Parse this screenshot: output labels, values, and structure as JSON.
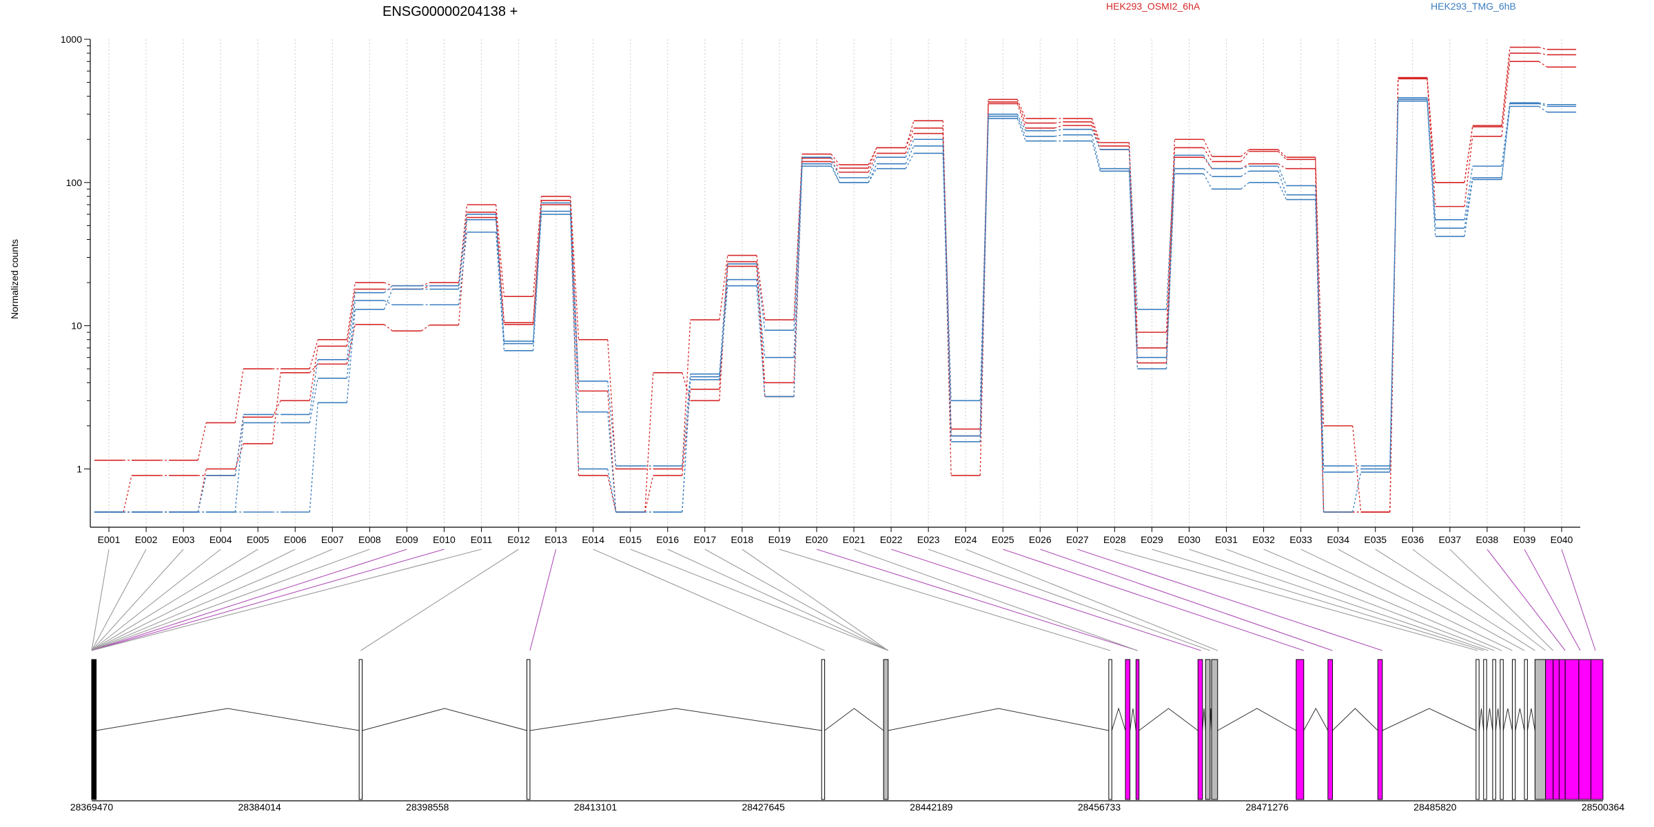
{
  "title": "ENSG00000204138 +",
  "legend": [
    {
      "label": "HEK293_OSMI2_6hA",
      "color": "#d62728"
    },
    {
      "label": "HEK293_TMG_6hB",
      "color": "#3b7ebf"
    }
  ],
  "chart_data": {
    "type": "line",
    "title": "ENSG00000204138 +",
    "ylabel": "Normalized counts",
    "xlabel": "",
    "yscale": "log",
    "ylim": [
      0.5,
      1000
    ],
    "yticks": [
      1,
      10,
      100,
      1000
    ],
    "ytick_labels": [
      "1",
      "10",
      "100",
      "1000"
    ],
    "grid": "vertical dotted lines at each exon",
    "legend_placement": "top",
    "categories": [
      "E001",
      "E002",
      "E003",
      "E004",
      "E005",
      "E006",
      "E007",
      "E008",
      "E009",
      "E010",
      "E011",
      "E012",
      "E013",
      "E014",
      "E015",
      "E016",
      "E017",
      "E018",
      "E019",
      "E020",
      "E021",
      "E022",
      "E023",
      "E024",
      "E025",
      "E026",
      "E027",
      "E028",
      "E029",
      "E030",
      "E031",
      "E032",
      "E033",
      "E034",
      "E035",
      "E036",
      "E037",
      "E038",
      "E039",
      "E040"
    ],
    "series": [
      {
        "name": "HEK293_OSMI2_6hA",
        "color": "#d62728",
        "values": [
          1.15,
          1.15,
          1.15,
          2.1,
          5,
          5,
          8,
          20,
          19,
          20,
          70,
          16,
          80,
          8,
          1,
          1,
          11,
          31,
          11,
          158,
          133,
          175,
          270,
          1.9,
          380,
          280,
          280,
          190,
          9,
          200,
          152,
          170,
          150,
          2,
          0.5,
          540,
          100,
          250,
          880,
          850
        ]
      },
      {
        "name": "HEK293_OSMI2_6hA",
        "color": "#d62728",
        "values": [
          0.5,
          0.9,
          0.9,
          0.9,
          2.3,
          3,
          7.2,
          18,
          18,
          19,
          62,
          10.5,
          75,
          3.5,
          0.5,
          0.9,
          3.6,
          28,
          4,
          148,
          126,
          175,
          240,
          1.7,
          365,
          260,
          265,
          180,
          7,
          175,
          140,
          165,
          145,
          0.5,
          0.5,
          535,
          100,
          245,
          800,
          780
        ]
      },
      {
        "name": "HEK293_OSMI2_6hA",
        "color": "#d62728",
        "values": [
          0.5,
          0.5,
          0.5,
          1.0,
          1.5,
          4.7,
          5.4,
          10.2,
          9.2,
          10.1,
          57,
          10.2,
          70,
          0.9,
          0.5,
          4.7,
          3.0,
          26,
          3.2,
          140,
          118,
          160,
          220,
          0.9,
          355,
          240,
          250,
          170,
          5.5,
          150,
          125,
          135,
          125,
          0.5,
          0.5,
          530,
          68,
          210,
          700,
          640
        ]
      },
      {
        "name": "HEK293_TMG_6hB",
        "color": "#3b7ebf",
        "values": [
          0.5,
          0.5,
          0.5,
          0.9,
          2.4,
          2.4,
          5.8,
          17,
          19,
          19,
          60,
          7.5,
          72,
          4.1,
          1.05,
          1.05,
          4.6,
          27,
          9.3,
          150,
          108,
          150,
          200,
          3.0,
          300,
          230,
          235,
          170,
          13,
          155,
          125,
          130,
          95,
          1.05,
          1.05,
          390,
          55,
          130,
          360,
          350
        ]
      },
      {
        "name": "HEK293_TMG_6hB",
        "color": "#3b7ebf",
        "values": [
          0.5,
          0.5,
          0.5,
          0.5,
          2.1,
          2.1,
          4.3,
          15,
          14,
          14,
          45,
          6.7,
          63,
          2.5,
          0.5,
          0.5,
          4.4,
          21,
          6,
          135,
          100,
          135,
          180,
          1.7,
          290,
          210,
          215,
          125,
          6,
          125,
          110,
          120,
          82,
          0.95,
          1.0,
          380,
          48,
          108,
          355,
          340
        ]
      },
      {
        "name": "HEK293_TMG_6hB",
        "color": "#3b7ebf",
        "values": [
          0.5,
          0.5,
          0.5,
          0.5,
          0.5,
          0.5,
          2.9,
          13,
          18,
          18,
          55,
          7.8,
          60,
          1.0,
          0.5,
          0.5,
          4.2,
          19,
          3.2,
          130,
          100,
          125,
          160,
          1.55,
          280,
          195,
          195,
          120,
          5.0,
          115,
          90,
          100,
          76,
          0.5,
          0.95,
          370,
          42,
          105,
          340,
          310
        ]
      }
    ],
    "exon_links": [
      {
        "exon": "E001",
        "x": 0.0,
        "highlight": false
      },
      {
        "exon": "E002",
        "x": 0.0,
        "highlight": false
      },
      {
        "exon": "E003",
        "x": 0.0,
        "highlight": false
      },
      {
        "exon": "E004",
        "x": 0.0,
        "highlight": false
      },
      {
        "exon": "E005",
        "x": 0.0,
        "highlight": false
      },
      {
        "exon": "E006",
        "x": 0.0,
        "highlight": false
      },
      {
        "exon": "E007",
        "x": 0.0,
        "highlight": false
      },
      {
        "exon": "E008",
        "x": 0.0,
        "highlight": false
      },
      {
        "exon": "E009",
        "x": 0.0,
        "highlight": true
      },
      {
        "exon": "E010",
        "x": 0.0,
        "highlight": true
      },
      {
        "exon": "E011",
        "x": 0.0,
        "highlight": false
      },
      {
        "exon": "E012",
        "x": 0.178,
        "highlight": false
      },
      {
        "exon": "E013",
        "x": 0.29,
        "highlight": true
      },
      {
        "exon": "E014",
        "x": 0.485,
        "highlight": false
      },
      {
        "exon": "E015",
        "x": 0.527,
        "highlight": false
      },
      {
        "exon": "E016",
        "x": 0.527,
        "highlight": false
      },
      {
        "exon": "E017",
        "x": 0.527,
        "highlight": false
      },
      {
        "exon": "E018",
        "x": 0.527,
        "highlight": false
      },
      {
        "exon": "E019",
        "x": 0.674,
        "highlight": false
      },
      {
        "exon": "E020",
        "x": 0.692,
        "highlight": true
      },
      {
        "exon": "E021",
        "x": 0.692,
        "highlight": false
      },
      {
        "exon": "E022",
        "x": 0.734,
        "highlight": true
      },
      {
        "exon": "E023",
        "x": 0.74,
        "highlight": false
      },
      {
        "exon": "E024",
        "x": 0.745,
        "highlight": false
      },
      {
        "exon": "E025",
        "x": 0.802,
        "highlight": true
      },
      {
        "exon": "E026",
        "x": 0.821,
        "highlight": true
      },
      {
        "exon": "E027",
        "x": 0.854,
        "highlight": true
      },
      {
        "exon": "E028",
        "x": 0.917,
        "highlight": false
      },
      {
        "exon": "E029",
        "x": 0.921,
        "highlight": false
      },
      {
        "exon": "E030",
        "x": 0.924,
        "highlight": false
      },
      {
        "exon": "E031",
        "x": 0.928,
        "highlight": false
      },
      {
        "exon": "E032",
        "x": 0.933,
        "highlight": false
      },
      {
        "exon": "E033",
        "x": 0.94,
        "highlight": false
      },
      {
        "exon": "E034",
        "x": 0.948,
        "highlight": false
      },
      {
        "exon": "E035",
        "x": 0.955,
        "highlight": false
      },
      {
        "exon": "E036",
        "x": 0.962,
        "highlight": false
      },
      {
        "exon": "E037",
        "x": 0.967,
        "highlight": false
      },
      {
        "exon": "E038",
        "x": 0.975,
        "highlight": true
      },
      {
        "exon": "E039",
        "x": 0.985,
        "highlight": true
      },
      {
        "exon": "E040",
        "x": 0.995,
        "highlight": true
      }
    ],
    "gene_model": {
      "exons": [
        {
          "start": 0.0,
          "end": 0.003,
          "fill": "#000000"
        },
        {
          "start": 0.177,
          "end": 0.179,
          "fill": "#ffffff"
        },
        {
          "start": 0.288,
          "end": 0.29,
          "fill": "#ffffff"
        },
        {
          "start": 0.483,
          "end": 0.485,
          "fill": "#ffffff"
        },
        {
          "start": 0.524,
          "end": 0.527,
          "fill": "#bbbbbb"
        },
        {
          "start": 0.673,
          "end": 0.675,
          "fill": "#ffffff"
        },
        {
          "start": 0.684,
          "end": 0.687,
          "fill": "#ff00ff"
        },
        {
          "start": 0.691,
          "end": 0.693,
          "fill": "#ff00ff"
        },
        {
          "start": 0.732,
          "end": 0.735,
          "fill": "#ff00ff"
        },
        {
          "start": 0.737,
          "end": 0.74,
          "fill": "#bbbbbb"
        },
        {
          "start": 0.741,
          "end": 0.745,
          "fill": "#bbbbbb"
        },
        {
          "start": 0.797,
          "end": 0.802,
          "fill": "#ff00ff"
        },
        {
          "start": 0.818,
          "end": 0.821,
          "fill": "#ff00ff"
        },
        {
          "start": 0.851,
          "end": 0.854,
          "fill": "#ff00ff"
        },
        {
          "start": 0.916,
          "end": 0.918,
          "fill": "#ffffff"
        },
        {
          "start": 0.921,
          "end": 0.923,
          "fill": "#ffffff"
        },
        {
          "start": 0.927,
          "end": 0.929,
          "fill": "#ffffff"
        },
        {
          "start": 0.932,
          "end": 0.934,
          "fill": "#ffffff"
        },
        {
          "start": 0.94,
          "end": 0.942,
          "fill": "#ffffff"
        },
        {
          "start": 0.948,
          "end": 0.95,
          "fill": "#ffffff"
        },
        {
          "start": 0.955,
          "end": 0.962,
          "fill": "#bbbbbb"
        },
        {
          "start": 0.962,
          "end": 0.967,
          "fill": "#ff00ff"
        },
        {
          "start": 0.967,
          "end": 0.971,
          "fill": "#ff00ff"
        },
        {
          "start": 0.971,
          "end": 0.975,
          "fill": "#ff00ff"
        },
        {
          "start": 0.975,
          "end": 0.984,
          "fill": "#ff00ff"
        },
        {
          "start": 0.984,
          "end": 0.992,
          "fill": "#ff00ff"
        },
        {
          "start": 0.992,
          "end": 1.0,
          "fill": "#ff00ff"
        }
      ],
      "axis_ticks": [
        "28369470",
        "28384014",
        "28398558",
        "28413101",
        "28427645",
        "28442189",
        "28456733",
        "28471276",
        "28485820",
        "28500364"
      ]
    }
  }
}
